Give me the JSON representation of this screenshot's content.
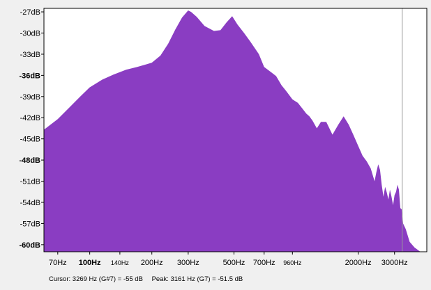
{
  "status": {
    "cursor_text": "Cursor: 3269 Hz (G#7) = -55 dB",
    "peak_text": "Peak: 3161 Hz (G7) = -51.5 dB"
  },
  "colors": {
    "fill": "#8a3dc2",
    "background": "#ffffff",
    "frame": "#000000",
    "cursor_line": "#9a9a9a"
  },
  "chart_data": {
    "type": "area",
    "title": "",
    "xlabel": "",
    "ylabel": "",
    "x_scale": "log",
    "xlim": [
      60,
      4300
    ],
    "ylim": [
      -61,
      -26.5
    ],
    "grid": false,
    "y_ticks": [
      {
        "value": -27,
        "label": "-27dB",
        "bold": false
      },
      {
        "value": -30,
        "label": "-30dB",
        "bold": false
      },
      {
        "value": -33,
        "label": "-33dB",
        "bold": false
      },
      {
        "value": -36,
        "label": "-36dB",
        "bold": true
      },
      {
        "value": -39,
        "label": "-39dB",
        "bold": false
      },
      {
        "value": -42,
        "label": "-42dB",
        "bold": false
      },
      {
        "value": -45,
        "label": "-45dB",
        "bold": false
      },
      {
        "value": -48,
        "label": "-48dB",
        "bold": true
      },
      {
        "value": -51,
        "label": "-51dB",
        "bold": false
      },
      {
        "value": -54,
        "label": "-54dB",
        "bold": false
      },
      {
        "value": -57,
        "label": "-57dB",
        "bold": false
      },
      {
        "value": -60,
        "label": "-60dB",
        "bold": true
      }
    ],
    "x_ticks": [
      {
        "value": 70,
        "label": "70Hz",
        "style": "normal"
      },
      {
        "value": 100,
        "label": "100Hz",
        "style": "major"
      },
      {
        "value": 140,
        "label": "140Hz",
        "style": "minor"
      },
      {
        "value": 200,
        "label": "200Hz",
        "style": "normal"
      },
      {
        "value": 300,
        "label": "300Hz",
        "style": "normal"
      },
      {
        "value": 500,
        "label": "500Hz",
        "style": "normal"
      },
      {
        "value": 700,
        "label": "700Hz",
        "style": "normal"
      },
      {
        "value": 960,
        "label": "960Hz",
        "style": "minor"
      },
      {
        "value": 2000,
        "label": "2000Hz",
        "style": "normal"
      },
      {
        "value": 3000,
        "label": "3000Hz",
        "style": "normal"
      }
    ],
    "cursor_x": 3269,
    "series": [
      {
        "x": [
          60,
          70,
          80,
          90,
          100,
          115,
          130,
          150,
          170,
          190,
          200,
          220,
          240,
          260,
          280,
          300,
          310,
          330,
          360,
          400,
          430,
          460,
          490,
          520,
          560,
          600,
          660,
          700,
          760,
          800,
          850,
          900,
          960,
          1020,
          1080,
          1120,
          1160,
          1200,
          1260,
          1320,
          1400,
          1500,
          1600,
          1700,
          1800,
          1900,
          2000,
          2100,
          2200,
          2300,
          2400,
          2450,
          2500,
          2550,
          2600,
          2650,
          2700,
          2750,
          2800,
          2850,
          2900,
          2950,
          3000,
          3050,
          3100,
          3150,
          3200,
          3250,
          3300,
          3400,
          3550,
          3750,
          4000,
          4200
        ],
        "y": [
          -43.7,
          -42.2,
          -40.5,
          -39.0,
          -37.7,
          -36.6,
          -35.9,
          -35.2,
          -34.8,
          -34.4,
          -34.2,
          -33.2,
          -31.5,
          -29.5,
          -27.8,
          -26.8,
          -27.0,
          -27.7,
          -29.0,
          -29.7,
          -29.6,
          -28.5,
          -27.6,
          -28.8,
          -30.0,
          -31.2,
          -33.0,
          -34.8,
          -35.6,
          -36.1,
          -37.4,
          -38.3,
          -39.4,
          -39.9,
          -40.8,
          -41.4,
          -41.8,
          -42.4,
          -43.5,
          -42.6,
          -42.6,
          -44.4,
          -43.0,
          -41.8,
          -43.0,
          -44.5,
          -46.0,
          -47.4,
          -48.2,
          -49.2,
          -51.0,
          -49.7,
          -48.6,
          -49.4,
          -51.5,
          -53.2,
          -51.8,
          -52.6,
          -53.6,
          -52.2,
          -53.2,
          -54.4,
          -53.0,
          -52.5,
          -51.5,
          -52.2,
          -54.8,
          -55.0,
          -57.0,
          -57.8,
          -59.6,
          -60.4,
          -61.0,
          -61.0
        ]
      }
    ]
  }
}
